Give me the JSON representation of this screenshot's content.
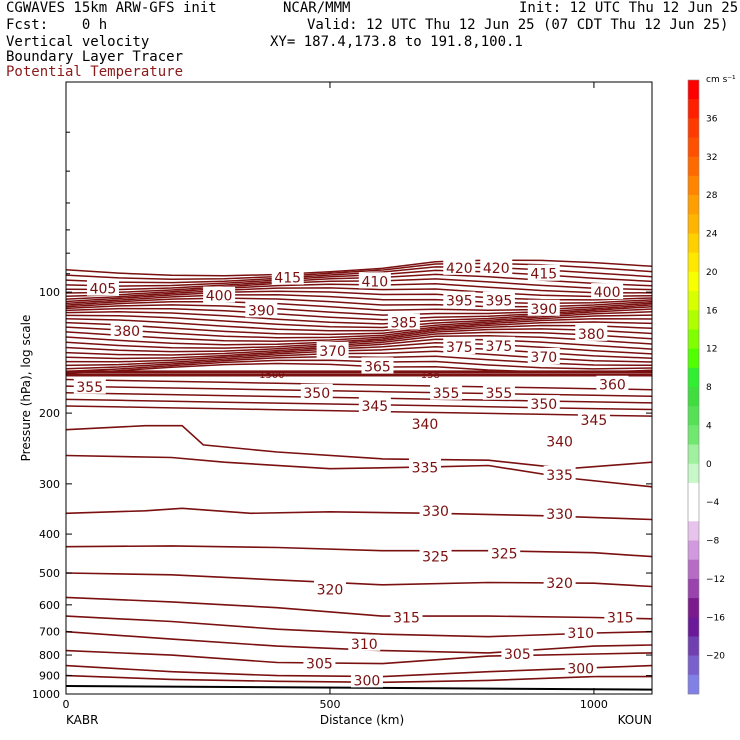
{
  "header": {
    "model": "CGWAVES 15km ARW-GFS init",
    "org": "NCAR/MMM",
    "init": "Init: 12 UTC Thu 12 Jun 25",
    "fcst": "Fcst:    0 h",
    "valid": "Valid: 12 UTC Thu 12 Jun 25 (07 CDT Thu 12 Jun 25)",
    "field1": "Vertical velocity",
    "xy": "XY= 187.4,173.8 to 191.8,100.1",
    "field2": "Boundary Layer Tracer",
    "field3": "Potential Temperature"
  },
  "chart_data": {
    "type": "line",
    "ylabel": "Pressure (hPa), log scale",
    "xlabel": "Distance (km)",
    "y_scale": "log",
    "y_inverted": true,
    "ylim": [
      1000,
      30
    ],
    "xlim": [
      0,
      1110
    ],
    "x_ticks": [
      0,
      500,
      1000
    ],
    "y_ticks": [
      100,
      200,
      300,
      400,
      500,
      600,
      700,
      800,
      900,
      1000
    ],
    "left_endpoint": "KABR",
    "right_endpoint": "KOUN",
    "contour_color": "#7a1010",
    "thick_line_pressure": 160,
    "contour_labels": [
      {
        "text": "415",
        "x": 420,
        "p": 92
      },
      {
        "text": "410",
        "x": 585,
        "p": 94
      },
      {
        "text": "420",
        "x": 745,
        "p": 87
      },
      {
        "text": "420",
        "x": 815,
        "p": 87
      },
      {
        "text": "415",
        "x": 905,
        "p": 90
      },
      {
        "text": "405",
        "x": 70,
        "p": 98
      },
      {
        "text": "400",
        "x": 290,
        "p": 102
      },
      {
        "text": "400",
        "x": 1025,
        "p": 100
      },
      {
        "text": "395",
        "x": 745,
        "p": 105
      },
      {
        "text": "395",
        "x": 820,
        "p": 105
      },
      {
        "text": "390",
        "x": 370,
        "p": 111
      },
      {
        "text": "390",
        "x": 905,
        "p": 110
      },
      {
        "text": "385",
        "x": 640,
        "p": 119
      },
      {
        "text": "380",
        "x": 115,
        "p": 125
      },
      {
        "text": "380",
        "x": 995,
        "p": 127
      },
      {
        "text": "375",
        "x": 745,
        "p": 137
      },
      {
        "text": "375",
        "x": 820,
        "p": 136
      },
      {
        "text": "370",
        "x": 505,
        "p": 140
      },
      {
        "text": "370",
        "x": 905,
        "p": 145
      },
      {
        "text": "365",
        "x": 590,
        "p": 153
      },
      {
        "text": "360",
        "x": 1035,
        "p": 170
      },
      {
        "text": "355",
        "x": 45,
        "p": 172
      },
      {
        "text": "350",
        "x": 475,
        "p": 178
      },
      {
        "text": "355",
        "x": 720,
        "p": 178
      },
      {
        "text": "355",
        "x": 820,
        "p": 178
      },
      {
        "text": "350",
        "x": 905,
        "p": 190
      },
      {
        "text": "345",
        "x": 585,
        "p": 192
      },
      {
        "text": "345",
        "x": 1000,
        "p": 208
      },
      {
        "text": "340",
        "x": 680,
        "p": 213
      },
      {
        "text": "340",
        "x": 935,
        "p": 235
      },
      {
        "text": "335",
        "x": 680,
        "p": 273
      },
      {
        "text": "335",
        "x": 935,
        "p": 285
      },
      {
        "text": "330",
        "x": 700,
        "p": 350
      },
      {
        "text": "330",
        "x": 935,
        "p": 357
      },
      {
        "text": "325",
        "x": 700,
        "p": 455
      },
      {
        "text": "325",
        "x": 830,
        "p": 447
      },
      {
        "text": "320",
        "x": 500,
        "p": 550
      },
      {
        "text": "320",
        "x": 935,
        "p": 530
      },
      {
        "text": "315",
        "x": 645,
        "p": 645
      },
      {
        "text": "315",
        "x": 1050,
        "p": 645
      },
      {
        "text": "310",
        "x": 565,
        "p": 750
      },
      {
        "text": "310",
        "x": 975,
        "p": 705
      },
      {
        "text": "305",
        "x": 480,
        "p": 840
      },
      {
        "text": "305",
        "x": 855,
        "p": 795
      },
      {
        "text": "300",
        "x": 570,
        "p": 925
      },
      {
        "text": "300",
        "x": 975,
        "p": 865
      }
    ],
    "small_labels": [
      {
        "text": "1500",
        "x": 390,
        "p": 160
      },
      {
        "text": "158",
        "x": 690,
        "p": 160
      }
    ],
    "colorbar": {
      "unit": "cm s⁻¹",
      "labels": [
        "36",
        "32",
        "28",
        "24",
        "20",
        "16",
        "12",
        "8",
        "4",
        "0",
        "−4",
        "−8",
        "−12",
        "−16",
        "−20"
      ],
      "colors": [
        "#ff0000",
        "#ff2000",
        "#ff3a00",
        "#ff5000",
        "#ff6a00",
        "#ff8400",
        "#ff9e00",
        "#ffb400",
        "#ffd000",
        "#ffe800",
        "#f8ff00",
        "#d8ff00",
        "#b0ff00",
        "#80ff00",
        "#50ff00",
        "#30ee30",
        "#40dd40",
        "#55e055",
        "#70e870",
        "#9ff09f",
        "#c8f8c8",
        "#ffffff",
        "#ffffff",
        "#e6c4ec",
        "#d29ade",
        "#b66cc4",
        "#9844ac",
        "#7a1a8c",
        "#6a1a98",
        "#7040b0",
        "#7a60cc",
        "#8080e6"
      ]
    }
  }
}
